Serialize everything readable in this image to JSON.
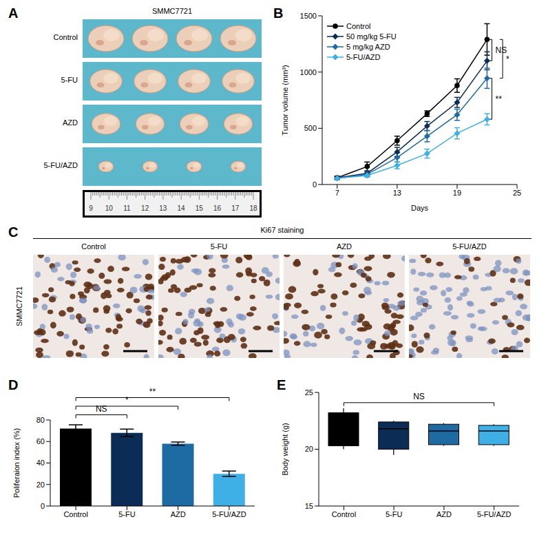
{
  "chart_data": [
    {
      "panel": "B",
      "type": "line",
      "x": [
        7,
        10,
        13,
        16,
        19,
        22
      ],
      "xlim": [
        5.5,
        25
      ],
      "xticks": [
        7,
        13,
        19,
        25
      ],
      "ylim": [
        0,
        1500
      ],
      "yticks": [
        0,
        500,
        1000,
        1500
      ],
      "x_label": "Days",
      "y_label": "Tumor volume (mm³)",
      "legend": "upper left",
      "series": [
        {
          "name": "Control",
          "color": "#000000",
          "marker": "circle",
          "values": [
            60,
            160,
            390,
            630,
            880,
            1290
          ],
          "errors": [
            15,
            40,
            40,
            25,
            60,
            140
          ]
        },
        {
          "name": "50 mg/kg 5-FU",
          "color": "#0b2d55",
          "marker": "diamond",
          "values": [
            60,
            100,
            290,
            520,
            730,
            1100
          ],
          "errors": [
            10,
            20,
            40,
            40,
            45,
            80
          ]
        },
        {
          "name": "5 mg/kg AZD",
          "color": "#1e6aa3",
          "marker": "diamond",
          "values": [
            55,
            90,
            240,
            430,
            620,
            945
          ],
          "errors": [
            10,
            20,
            40,
            50,
            50,
            90
          ]
        },
        {
          "name": "5-FU/AZD",
          "color": "#3fb0e6",
          "marker": "diamond",
          "values": [
            55,
            80,
            170,
            275,
            455,
            580
          ],
          "errors": [
            10,
            15,
            30,
            40,
            50,
            50
          ]
        }
      ],
      "annotations": [
        {
          "text": "NS",
          "between": [
            "Control",
            "50 mg/kg 5-FU"
          ]
        },
        {
          "text": "*",
          "between": [
            "Control",
            "5 mg/kg AZD"
          ]
        },
        {
          "text": "**",
          "between": [
            "5 mg/kg AZD",
            "5-FU/AZD"
          ]
        }
      ]
    },
    {
      "panel": "D",
      "type": "bar",
      "categories": [
        "Control",
        "5-FU",
        "AZD",
        "5-FU/AZD"
      ],
      "values": [
        72,
        68,
        58,
        30
      ],
      "errors": [
        3.5,
        3.5,
        1.5,
        2.5
      ],
      "colors": [
        "#000000",
        "#0b2d55",
        "#1e6aa3",
        "#3fb0e6"
      ],
      "ylim": [
        0,
        80
      ],
      "yticks": [
        0,
        20,
        40,
        60,
        80
      ],
      "y_label": "Poliferaion index (%)",
      "annotations": [
        {
          "text": "NS",
          "between": [
            "Control",
            "5-FU"
          ]
        },
        {
          "text": "*",
          "between": [
            "Control",
            "AZD"
          ]
        },
        {
          "text": "**",
          "between": [
            "Control",
            "5-FU/AZD"
          ]
        }
      ]
    },
    {
      "panel": "E",
      "type": "box",
      "categories": [
        "Control",
        "5-FU",
        "AZD",
        "5-FU/AZD"
      ],
      "min": [
        20,
        19.5,
        20.3,
        20.3
      ],
      "q1": [
        20.3,
        20,
        20.4,
        20.4
      ],
      "median": [
        23.2,
        21.8,
        21.6,
        21.6
      ],
      "q3": [
        23.2,
        22.4,
        22.2,
        22.1
      ],
      "max": [
        23.6,
        22.5,
        22.3,
        22.2
      ],
      "colors": [
        "#000000",
        "#0b2d55",
        "#1e6aa3",
        "#3fb0e6"
      ],
      "ylim": [
        15,
        25
      ],
      "yticks": [
        15,
        20,
        25
      ],
      "y_label": "Body weight (g)",
      "annotations": [
        {
          "text": "NS",
          "between": [
            "Control",
            "5-FU/AZD"
          ]
        }
      ]
    }
  ],
  "panels": [
    {
      "panel": "A",
      "title": "SMMC7721",
      "rows": [
        "Control",
        "5-FU",
        "AZD",
        "5-FU/AZD"
      ],
      "ruler": [
        9,
        10,
        11,
        12,
        13,
        14,
        15,
        16,
        17,
        18
      ]
    },
    {
      "panel": "C",
      "title": "Ki67 staining",
      "row_label": "SMMC7721",
      "columns": [
        "Control",
        "5-FU",
        "AZD",
        "5-FU/AZD"
      ]
    }
  ]
}
